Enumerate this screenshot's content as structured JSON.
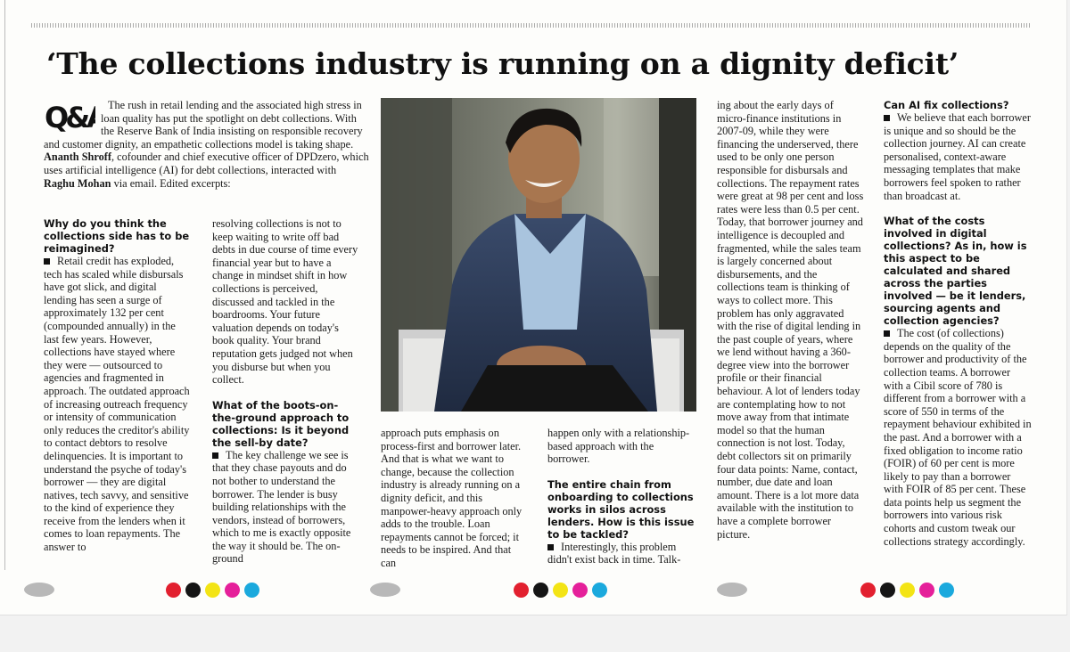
{
  "headline": "‘The collections industry is running on a dignity deficit’",
  "qa_badge": "Q&A",
  "intro": {
    "p1": "The rush in retail lending and the associated high stress in loan quality has put the spotlight on debt collections. With the Reserve Bank of India insisting on responsible recovery and customer dignity, an empathetic collections model is taking shape.",
    "name": "Ananth Shroff",
    "p2": ", cofounder and chief executive officer of DPDzero, which uses artificial intelligence (AI) for debt collections, interacted with",
    "interviewer": "Raghu Mohan",
    "p3": "via email. Edited excerpts:"
  },
  "col1": {
    "q1": "Why do you think the collections side has to be reimagined?",
    "a1": "Retail credit has exploded, tech has scaled while disbursals have got slick, and digital lending has seen a surge of approximately 132 per cent (compounded annually) in the last few years. However, collections have stayed where they were — outsourced to agencies and fragmented in approach. The outdated approach of increasing outreach frequency or intensity of communication only reduces the creditor's ability to contact debtors to resolve delinquencies. It is important to understand the psyche of today's borrower — they are digital natives, tech savvy, and sensitive to the kind of experience they receive from the lenders when it comes to loan repayments. The answer to"
  },
  "col2": {
    "a1_cont": "resolving collections is not to keep waiting to write off bad debts in due course of time every financial year but to have a change in mindset shift in how collections is perceived, discussed and tackled in the boardrooms. Your future valuation depends on today's book quality. Your brand reputation gets judged not when you disburse but when you collect.",
    "q2": "What of the boots-on-the-ground approach to collections: Is it beyond the sell-by date?",
    "a2": "The key challenge we see is that they chase payouts and do not bother to understand the borrower. The lender is busy building relationships with the vendors, instead of borrowers, which to me is exactly opposite the way it should be. The on-ground"
  },
  "col3": {
    "a2_cont": "approach puts emphasis on process-first and borrower later. And that is what we want to change, because the collection industry is already running on a dignity deficit, and this manpower-heavy approach only adds to the trouble. Loan repayments cannot be forced; it needs to be inspired. And that can"
  },
  "col4": {
    "a2_cont": "happen only with a relationship-based approach with the borrower.",
    "q3": "The entire chain from onboarding to collections works in silos across lenders. How is this issue to be tackled?",
    "a3": "Interestingly, this problem didn't exist back in time. Talk-"
  },
  "col5": {
    "a3_cont": "ing about the early days of micro-finance institutions in 2007-09, while they were financing the underserved, there used to be only one person responsible for disbursals and collections. The repayment rates were great at 98 per cent and loss rates were less than 0.5 per cent. Today, that borrower journey and intelligence is decoupled and fragmented, while the sales team is largely concerned about disbursements, and the collections team is thinking of ways to collect more. This problem has only aggravated with the rise of digital lending in the past couple of years, where we lend without having a 360-degree view into the borrower profile or their financial behaviour. A lot of lenders today are contemplating how to not move away from that intimate model so that the human connection is not lost. Today, debt collectors sit on primarily four data points: Name, contact, number, due date and loan amount. There is a lot more data available with the institution to have a complete borrower picture."
  },
  "col6": {
    "q4": "Can AI fix collections?",
    "a4": "We believe that each borrower is unique and so should be the collection journey. AI can create personalised, context-aware messaging templates that make borrowers feel spoken to rather than broadcast at.",
    "q5": "What of the costs involved in digital collections? As in, how is this aspect to be calculated and shared across the parties involved — be it lenders, sourcing agents and collection agencies?",
    "a5": "The cost (of collections) depends on the quality of the borrower and productivity of the collection teams. A borrower with a Cibil score of 780 is different from a borrower with a score of 550 in terms of the repayment behaviour exhibited in the past. And a borrower with a fixed obligation to income ratio (FOIR) of 60 per cent is more likely to pay than a borrower with FOIR of 85 per cent. These data points help us segment the borrowers into various risk cohorts and custom tweak our collections strategy accordingly."
  },
  "colors": {
    "reg_gray": "#b8b8b8",
    "ink_red": "#e2202f",
    "ink_black": "#151515",
    "ink_yellow": "#f3e415",
    "ink_magenta": "#e5209a",
    "ink_cyan": "#1ba9dd"
  }
}
